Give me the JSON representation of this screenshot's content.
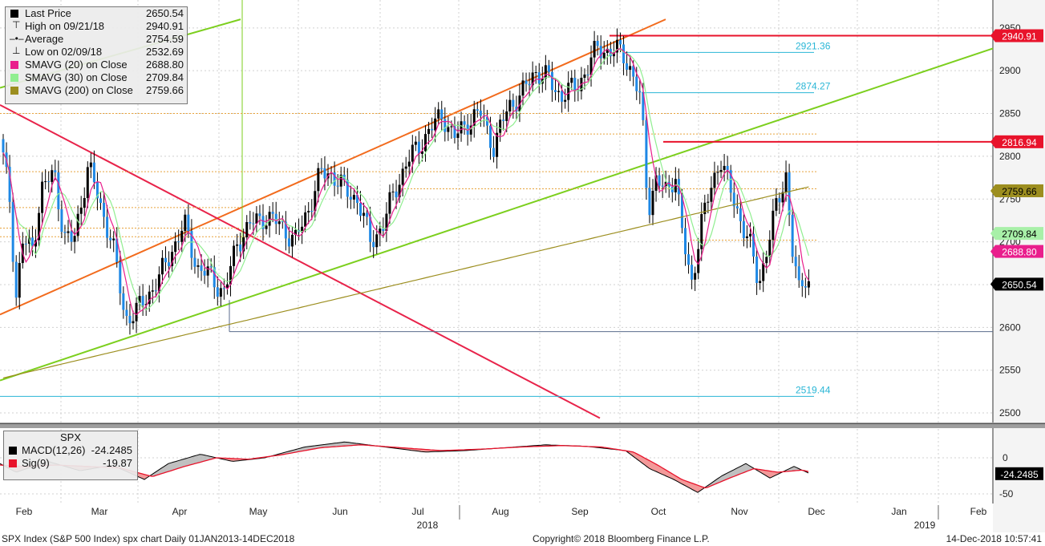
{
  "chart_data": {
    "type": "candlestick",
    "ylim": [
      2480,
      2960
    ],
    "y_ticks": [
      2500,
      2550,
      2600,
      2650,
      2700,
      2750,
      2800,
      2850,
      2900,
      2950
    ],
    "month_labels": [
      "Feb",
      "Mar",
      "Apr",
      "May",
      "Jun",
      "Jul",
      "Aug",
      "Sep",
      "Oct",
      "Nov",
      "Dec",
      "Jan",
      "Feb"
    ],
    "year_labels": [
      "2018",
      "2019"
    ],
    "legend": {
      "last_price": {
        "label": "Last Price",
        "value": "2650.54"
      },
      "high": {
        "label": "High on 09/21/18",
        "value": "2940.91"
      },
      "average": {
        "label": "Average",
        "value": "2754.59"
      },
      "low": {
        "label": "Low on 02/09/18",
        "value": "2532.69"
      },
      "sma20": {
        "label": "SMAVG (20)  on Close",
        "value": "2688.80"
      },
      "sma30": {
        "label": "SMAVG (30)  on Close",
        "value": "2709.84"
      },
      "sma200": {
        "label": "SMAVG (200)  on Close",
        "value": "2759.66"
      }
    },
    "axis_tags": [
      {
        "value": 2940.91,
        "text": "2940.91",
        "bg": "#e8132b",
        "fg": "#ffffff"
      },
      {
        "value": 2816.94,
        "text": "2816.94",
        "bg": "#e8132b",
        "fg": "#ffffff"
      },
      {
        "value": 2759.66,
        "text": "2759.66",
        "bg": "#9c8e1f",
        "fg": "#000000"
      },
      {
        "value": 2709.84,
        "text": "2709.84",
        "bg": "#a8f0a8",
        "fg": "#000000"
      },
      {
        "value": 2688.8,
        "text": "2688.80",
        "bg": "#e91e8c",
        "fg": "#ffffff"
      },
      {
        "value": 2650.54,
        "text": "2650.54",
        "bg": "#000000",
        "fg": "#ffffff"
      }
    ],
    "level_labels": [
      {
        "value": 2921.36,
        "text": "2921.36"
      },
      {
        "value": 2874.27,
        "text": "2874.27"
      },
      {
        "value": 2519.44,
        "text": "2519.44"
      }
    ],
    "macd": {
      "title": "SPX",
      "macd_label": "MACD(12,26)",
      "macd_value": "-24.2485",
      "sig_label": "Sig(9)",
      "sig_value": "-19.87",
      "axis_ticks": [
        "0",
        "-50"
      ],
      "tag": "-24.2485"
    },
    "colors": {
      "up": "#000000",
      "down": "#1e88e5",
      "sma20": "#e91e8c",
      "sma30": "#90ee90",
      "sma200": "#9c8e1f",
      "resistance": "#e8132b",
      "trend_orange": "#f26b1d",
      "trend_green": "#7ccf1e",
      "trend_red": "#e8234a",
      "level_cyan": "#29b6d6"
    }
  },
  "footer": {
    "left": "SPX Index (S&P 500 Index) spx chart  Daily 01JAN2013-14DEC2018",
    "center": "Copyright© 2018 Bloomberg Finance L.P.",
    "right": "14-Dec-2018 10:57:41"
  }
}
